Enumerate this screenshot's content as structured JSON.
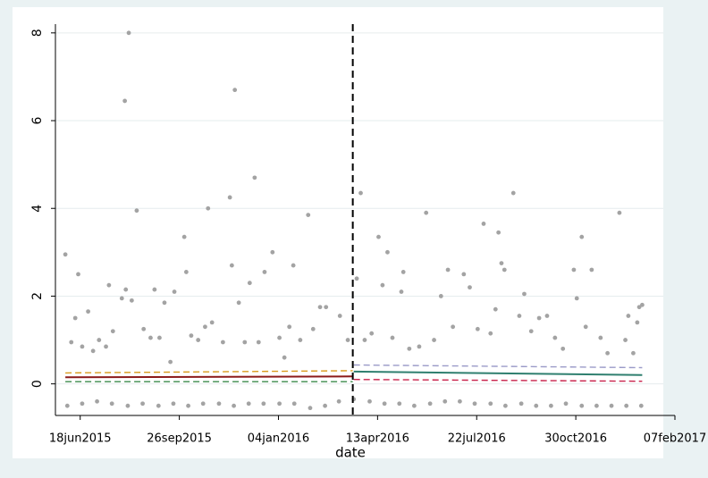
{
  "chart_data": {
    "type": "scatter",
    "x_label": "date",
    "xlim": [
      "2015-05-24",
      "2017-02-07"
    ],
    "xticks": [
      {
        "value": "2015-06-18",
        "label": "18jun2015"
      },
      {
        "value": "2015-09-26",
        "label": "26sep2015"
      },
      {
        "value": "2016-01-04",
        "label": "04jan2016"
      },
      {
        "value": "2016-04-13",
        "label": "13apr2016"
      },
      {
        "value": "2016-07-22",
        "label": "22jul2016"
      },
      {
        "value": "2016-10-30",
        "label": "30oct2016"
      },
      {
        "value": "2017-02-07",
        "label": "07feb2017"
      }
    ],
    "ylim": [
      -0.72,
      8.2
    ],
    "yticks": [
      0,
      2,
      4,
      6,
      8
    ],
    "grid": true,
    "event_line": {
      "x": "2016-03-19"
    },
    "series": [
      {
        "type": "scatter",
        "color": "#a3a3a3",
        "x": [
          "2015-06-03",
          "2015-06-09",
          "2015-06-13",
          "2015-06-16",
          "2015-06-20",
          "2015-06-26",
          "2015-07-01",
          "2015-07-07",
          "2015-07-14",
          "2015-07-17",
          "2015-07-21",
          "2015-07-30",
          "2015-08-02",
          "2015-08-03",
          "2015-08-06",
          "2015-08-09",
          "2015-08-14",
          "2015-08-21",
          "2015-08-28",
          "2015-09-01",
          "2015-09-06",
          "2015-09-11",
          "2015-09-17",
          "2015-09-21",
          "2015-10-01",
          "2015-10-03",
          "2015-10-08",
          "2015-10-15",
          "2015-10-22",
          "2015-10-25",
          "2015-10-29",
          "2015-11-09",
          "2015-11-16",
          "2015-11-18",
          "2015-11-21",
          "2015-11-25",
          "2015-12-01",
          "2015-12-06",
          "2015-12-11",
          "2015-12-15",
          "2015-12-21",
          "2015-12-29",
          "2016-01-05",
          "2016-01-10",
          "2016-01-15",
          "2016-01-19",
          "2016-01-26",
          "2016-02-03",
          "2016-02-08",
          "2016-02-15",
          "2016-02-21",
          "2016-03-06",
          "2016-03-14",
          "2016-03-23",
          "2016-03-27",
          "2016-03-31",
          "2016-04-07",
          "2016-04-14",
          "2016-04-18",
          "2016-04-23",
          "2016-04-28",
          "2016-05-07",
          "2016-05-09",
          "2016-05-15",
          "2016-05-25",
          "2016-06-01",
          "2016-06-09",
          "2016-06-16",
          "2016-06-23",
          "2016-06-28",
          "2016-07-09",
          "2016-07-15",
          "2016-07-23",
          "2016-07-29",
          "2016-08-05",
          "2016-08-10",
          "2016-08-13",
          "2016-08-16",
          "2016-08-19",
          "2016-08-28",
          "2016-09-03",
          "2016-09-08",
          "2016-09-15",
          "2016-09-23",
          "2016-10-01",
          "2016-10-09",
          "2016-10-17",
          "2016-10-28",
          "2016-10-31",
          "2016-11-05",
          "2016-11-09",
          "2016-11-15",
          "2016-11-24",
          "2016-12-01",
          "2016-12-13",
          "2016-12-19",
          "2016-12-22",
          "2016-12-27",
          "2016-12-31",
          "2017-01-02",
          "2017-01-05"
        ],
        "values": [
          2.95,
          0.95,
          1.5,
          2.5,
          0.85,
          1.65,
          0.75,
          1.0,
          0.85,
          2.25,
          1.2,
          1.95,
          6.45,
          2.15,
          8.0,
          1.9,
          3.95,
          1.25,
          1.05,
          2.15,
          1.05,
          1.85,
          0.5,
          2.1,
          3.35,
          2.55,
          1.1,
          1.0,
          1.3,
          4.0,
          1.4,
          0.95,
          4.25,
          2.7,
          6.7,
          1.85,
          0.95,
          2.3,
          4.7,
          0.95,
          2.55,
          3.0,
          1.05,
          0.6,
          1.3,
          2.7,
          1.0,
          3.85,
          1.25,
          1.75,
          1.75,
          1.55,
          1.0,
          2.4,
          4.35,
          1.0,
          1.15,
          3.35,
          2.25,
          3.0,
          1.05,
          2.1,
          2.55,
          0.8,
          0.85,
          3.9,
          1.0,
          2.0,
          2.6,
          1.3,
          2.5,
          2.2,
          1.25,
          3.65,
          1.15,
          1.7,
          3.45,
          2.75,
          2.6,
          4.35,
          1.55,
          2.05,
          1.2,
          1.5,
          1.55,
          1.05,
          0.8,
          2.6,
          1.95,
          3.35,
          1.3,
          2.6,
          1.05,
          0.7,
          3.9,
          1.0,
          1.55,
          0.7,
          1.4,
          1.75,
          1.8
        ]
      },
      {
        "type": "scatter",
        "color": "#a3a3a3",
        "x": [
          "2015-06-05",
          "2015-06-20",
          "2015-07-05",
          "2015-07-20",
          "2015-08-05",
          "2015-08-20",
          "2015-09-05",
          "2015-09-20",
          "2015-10-05",
          "2015-10-20",
          "2015-11-05",
          "2015-11-20",
          "2015-12-05",
          "2015-12-20",
          "2016-01-05",
          "2016-01-20",
          "2016-02-05",
          "2016-02-20",
          "2016-03-05",
          "2016-03-20",
          "2016-04-05",
          "2016-04-20",
          "2016-05-05",
          "2016-05-20",
          "2016-06-05",
          "2016-06-20",
          "2016-07-05",
          "2016-07-20",
          "2016-08-05",
          "2016-08-20",
          "2016-09-05",
          "2016-09-20",
          "2016-10-05",
          "2016-10-20",
          "2016-11-05",
          "2016-11-20",
          "2016-12-05",
          "2016-12-20",
          "2017-01-04"
        ],
        "values": [
          -0.5,
          -0.45,
          -0.4,
          -0.45,
          -0.5,
          -0.45,
          -0.5,
          -0.45,
          -0.5,
          -0.45,
          -0.45,
          -0.5,
          -0.45,
          -0.45,
          -0.45,
          -0.45,
          -0.55,
          -0.5,
          -0.4,
          -0.35,
          -0.4,
          -0.45,
          -0.45,
          -0.5,
          -0.45,
          -0.4,
          -0.4,
          -0.45,
          -0.45,
          -0.5,
          -0.45,
          -0.5,
          -0.5,
          -0.45,
          -0.5,
          -0.5,
          -0.5,
          -0.5,
          -0.5
        ]
      },
      {
        "type": "line",
        "color": "#d99b1c",
        "dash": true,
        "x": [
          "2015-06-03",
          "2016-03-19"
        ],
        "values": [
          0.25,
          0.3
        ]
      },
      {
        "type": "line",
        "color": "#8b1a1a",
        "dash": false,
        "x": [
          "2015-06-03",
          "2016-03-19"
        ],
        "values": [
          0.15,
          0.17
        ]
      },
      {
        "type": "line",
        "color": "#3a8a4a",
        "dash": true,
        "x": [
          "2015-06-03",
          "2016-03-19"
        ],
        "values": [
          0.05,
          0.05
        ]
      },
      {
        "type": "line",
        "color": "#9a9ac8",
        "dash": true,
        "x": [
          "2016-03-20",
          "2017-01-05"
        ],
        "values": [
          0.43,
          0.37
        ]
      },
      {
        "type": "line",
        "color": "#2f7f6f",
        "dash": false,
        "x": [
          "2016-03-20",
          "2017-01-05"
        ],
        "values": [
          0.28,
          0.2
        ]
      },
      {
        "type": "line",
        "color": "#c8204a",
        "dash": true,
        "x": [
          "2016-03-20",
          "2017-01-05"
        ],
        "values": [
          0.1,
          0.06
        ]
      }
    ]
  }
}
